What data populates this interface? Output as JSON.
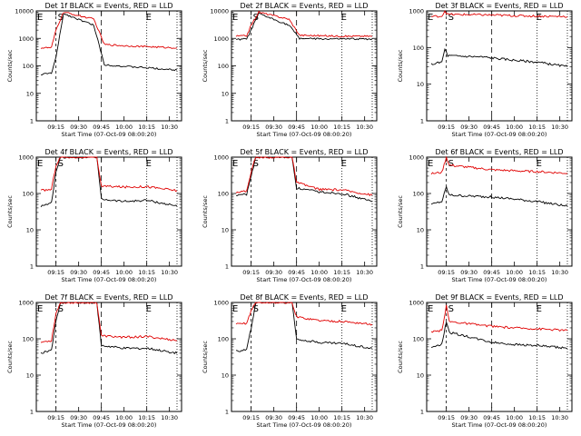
{
  "figure": {
    "y_label": "Counts/sec",
    "x_label": "Start Time (07-Oct-09 08:00:20)",
    "x_ticks": [
      "09:15",
      "09:30",
      "09:45",
      "10:00",
      "10:15",
      "10:30"
    ],
    "start_marker": "S",
    "end_marker": "E",
    "colors": {
      "black_series": "#000000",
      "red_series": "#e00000"
    }
  },
  "chart_data": [
    {
      "type": "line",
      "title": "Det 1f BLACK = Events, RED = LLD",
      "ylim": [
        1,
        10000
      ],
      "yscale": "log",
      "y_ticks": [
        "1",
        "10",
        "100",
        "1000",
        "10000"
      ],
      "flare_peak": 9000,
      "series": [
        {
          "values": [
            {
              "x": "09:05",
              "y": 48
            },
            {
              "x": "09:12",
              "y": 55
            },
            {
              "x": "09:15",
              "y": 200
            },
            {
              "x": "09:20",
              "y": 8000
            },
            {
              "x": "09:40",
              "y": 3000
            },
            {
              "x": "09:47",
              "y": 110
            },
            {
              "x": "10:00",
              "y": 95
            },
            {
              "x": "10:15",
              "y": 85
            },
            {
              "x": "10:35",
              "y": 70
            }
          ]
        },
        {
          "values": [
            {
              "x": "09:05",
              "y": 450
            },
            {
              "x": "09:12",
              "y": 460
            },
            {
              "x": "09:15",
              "y": 2000
            },
            {
              "x": "09:20",
              "y": 9000
            },
            {
              "x": "09:40",
              "y": 5000
            },
            {
              "x": "09:47",
              "y": 600
            },
            {
              "x": "10:00",
              "y": 540
            },
            {
              "x": "10:15",
              "y": 500
            },
            {
              "x": "10:35",
              "y": 450
            }
          ]
        }
      ]
    },
    {
      "type": "line",
      "title": "Det 2f BLACK = Events, RED = LLD",
      "ylim": [
        1,
        10000
      ],
      "yscale": "log",
      "y_ticks": [
        "1",
        "10",
        "100",
        "1000",
        "10000"
      ],
      "flare_peak": 9000,
      "series": [
        {
          "values": [
            {
              "x": "09:05",
              "y": 900
            },
            {
              "x": "09:12",
              "y": 950
            },
            {
              "x": "09:15",
              "y": 2000
            },
            {
              "x": "09:20",
              "y": 8000
            },
            {
              "x": "09:40",
              "y": 3000
            },
            {
              "x": "09:47",
              "y": 1000
            },
            {
              "x": "10:00",
              "y": 950
            },
            {
              "x": "10:15",
              "y": 950
            },
            {
              "x": "10:35",
              "y": 950
            }
          ]
        },
        {
          "values": [
            {
              "x": "09:05",
              "y": 1200
            },
            {
              "x": "09:12",
              "y": 1250
            },
            {
              "x": "09:15",
              "y": 3000
            },
            {
              "x": "09:20",
              "y": 9000
            },
            {
              "x": "09:40",
              "y": 5000
            },
            {
              "x": "09:47",
              "y": 1300
            },
            {
              "x": "10:00",
              "y": 1250
            },
            {
              "x": "10:15",
              "y": 1200
            },
            {
              "x": "10:35",
              "y": 1200
            }
          ]
        }
      ]
    },
    {
      "type": "line",
      "title": "Det 3f BLACK = Events, RED = LLD",
      "ylim": [
        1,
        1000
      ],
      "yscale": "log",
      "y_ticks": [
        "1",
        "10",
        "100",
        "1000"
      ],
      "flare_peak": null,
      "series": [
        {
          "values": [
            {
              "x": "09:05",
              "y": 35
            },
            {
              "x": "09:12",
              "y": 40
            },
            {
              "x": "09:14",
              "y": 90
            },
            {
              "x": "09:16",
              "y": 60
            },
            {
              "x": "09:40",
              "y": 55
            },
            {
              "x": "10:00",
              "y": 45
            },
            {
              "x": "10:15",
              "y": 40
            },
            {
              "x": "10:35",
              "y": 30
            }
          ]
        },
        {
          "values": [
            {
              "x": "09:05",
              "y": 700
            },
            {
              "x": "09:12",
              "y": 720
            },
            {
              "x": "09:14",
              "y": 1000
            },
            {
              "x": "09:16",
              "y": 800
            },
            {
              "x": "09:40",
              "y": 780
            },
            {
              "x": "10:00",
              "y": 740
            },
            {
              "x": "10:15",
              "y": 720
            },
            {
              "x": "10:35",
              "y": 700
            }
          ]
        }
      ]
    },
    {
      "type": "line",
      "title": "Det 4f BLACK = Events, RED = LLD",
      "ylim": [
        1,
        1000
      ],
      "yscale": "log",
      "y_ticks": [
        "1",
        "10",
        "100",
        "1000"
      ],
      "flare_peak": 1000,
      "series": [
        {
          "values": [
            {
              "x": "09:05",
              "y": 45
            },
            {
              "x": "09:12",
              "y": 55
            },
            {
              "x": "09:15",
              "y": 400
            },
            {
              "x": "09:18",
              "y": 1000
            },
            {
              "x": "09:42",
              "y": 1000
            },
            {
              "x": "09:45",
              "y": 70
            },
            {
              "x": "10:00",
              "y": 60
            },
            {
              "x": "10:15",
              "y": 65
            },
            {
              "x": "10:35",
              "y": 45
            }
          ]
        },
        {
          "values": [
            {
              "x": "09:05",
              "y": 120
            },
            {
              "x": "09:12",
              "y": 130
            },
            {
              "x": "09:15",
              "y": 600
            },
            {
              "x": "09:18",
              "y": 1000
            },
            {
              "x": "09:42",
              "y": 1000
            },
            {
              "x": "09:45",
              "y": 160
            },
            {
              "x": "10:00",
              "y": 150
            },
            {
              "x": "10:15",
              "y": 155
            },
            {
              "x": "10:35",
              "y": 120
            }
          ]
        }
      ]
    },
    {
      "type": "line",
      "title": "Det 5f BLACK = Events, RED = LLD",
      "ylim": [
        1,
        1000
      ],
      "yscale": "log",
      "y_ticks": [
        "1",
        "10",
        "100",
        "1000"
      ],
      "flare_peak": 1000,
      "series": [
        {
          "values": [
            {
              "x": "09:05",
              "y": 90
            },
            {
              "x": "09:12",
              "y": 95
            },
            {
              "x": "09:15",
              "y": 300
            },
            {
              "x": "09:18",
              "y": 1000
            },
            {
              "x": "09:42",
              "y": 1000
            },
            {
              "x": "09:45",
              "y": 140
            },
            {
              "x": "10:00",
              "y": 110
            },
            {
              "x": "10:15",
              "y": 100
            },
            {
              "x": "10:35",
              "y": 60
            }
          ]
        },
        {
          "values": [
            {
              "x": "09:05",
              "y": 110
            },
            {
              "x": "09:12",
              "y": 115
            },
            {
              "x": "09:15",
              "y": 400
            },
            {
              "x": "09:18",
              "y": 1000
            },
            {
              "x": "09:42",
              "y": 1000
            },
            {
              "x": "09:45",
              "y": 200
            },
            {
              "x": "10:00",
              "y": 130
            },
            {
              "x": "10:15",
              "y": 125
            },
            {
              "x": "10:35",
              "y": 90
            }
          ]
        }
      ]
    },
    {
      "type": "line",
      "title": "Det 6f BLACK = Events, RED = LLD",
      "ylim": [
        1,
        1000
      ],
      "yscale": "log",
      "y_ticks": [
        "1",
        "10",
        "100",
        "1000"
      ],
      "flare_peak": null,
      "series": [
        {
          "values": [
            {
              "x": "09:05",
              "y": 50
            },
            {
              "x": "09:12",
              "y": 60
            },
            {
              "x": "09:15",
              "y": 150
            },
            {
              "x": "09:17",
              "y": 90
            },
            {
              "x": "09:45",
              "y": 80
            },
            {
              "x": "10:00",
              "y": 70
            },
            {
              "x": "10:15",
              "y": 60
            },
            {
              "x": "10:35",
              "y": 45
            }
          ]
        },
        {
          "values": [
            {
              "x": "09:05",
              "y": 350
            },
            {
              "x": "09:12",
              "y": 380
            },
            {
              "x": "09:15",
              "y": 1000
            },
            {
              "x": "09:17",
              "y": 600
            },
            {
              "x": "09:45",
              "y": 450
            },
            {
              "x": "10:00",
              "y": 420
            },
            {
              "x": "10:15",
              "y": 400
            },
            {
              "x": "10:35",
              "y": 360
            }
          ]
        }
      ]
    },
    {
      "type": "line",
      "title": "Det 7f BLACK = Events, RED = LLD",
      "ylim": [
        1,
        1000
      ],
      "yscale": "log",
      "y_ticks": [
        "1",
        "10",
        "100",
        "1000"
      ],
      "flare_peak": 1000,
      "series": [
        {
          "values": [
            {
              "x": "09:05",
              "y": 40
            },
            {
              "x": "09:12",
              "y": 50
            },
            {
              "x": "09:15",
              "y": 300
            },
            {
              "x": "09:18",
              "y": 1000
            },
            {
              "x": "09:42",
              "y": 1000
            },
            {
              "x": "09:45",
              "y": 65
            },
            {
              "x": "10:00",
              "y": 55
            },
            {
              "x": "10:15",
              "y": 55
            },
            {
              "x": "10:35",
              "y": 40
            }
          ]
        },
        {
          "values": [
            {
              "x": "09:05",
              "y": 80
            },
            {
              "x": "09:12",
              "y": 90
            },
            {
              "x": "09:15",
              "y": 500
            },
            {
              "x": "09:18",
              "y": 1000
            },
            {
              "x": "09:42",
              "y": 1000
            },
            {
              "x": "09:45",
              "y": 120
            },
            {
              "x": "10:00",
              "y": 110
            },
            {
              "x": "10:15",
              "y": 115
            },
            {
              "x": "10:35",
              "y": 90
            }
          ]
        }
      ]
    },
    {
      "type": "line",
      "title": "Det 8f BLACK = Events, RED = LLD",
      "ylim": [
        1,
        1000
      ],
      "yscale": "log",
      "y_ticks": [
        "1",
        "10",
        "100",
        "1000"
      ],
      "flare_peak": 1000,
      "series": [
        {
          "values": [
            {
              "x": "09:05",
              "y": 45
            },
            {
              "x": "09:12",
              "y": 50
            },
            {
              "x": "09:15",
              "y": 200
            },
            {
              "x": "09:18",
              "y": 1000
            },
            {
              "x": "09:42",
              "y": 1000
            },
            {
              "x": "09:45",
              "y": 100
            },
            {
              "x": "10:00",
              "y": 80
            },
            {
              "x": "10:15",
              "y": 75
            },
            {
              "x": "10:35",
              "y": 55
            }
          ]
        },
        {
          "values": [
            {
              "x": "09:05",
              "y": 250
            },
            {
              "x": "09:12",
              "y": 270
            },
            {
              "x": "09:15",
              "y": 600
            },
            {
              "x": "09:18",
              "y": 1000
            },
            {
              "x": "09:42",
              "y": 1000
            },
            {
              "x": "09:45",
              "y": 400
            },
            {
              "x": "10:00",
              "y": 320
            },
            {
              "x": "10:15",
              "y": 300
            },
            {
              "x": "10:35",
              "y": 250
            }
          ]
        }
      ]
    },
    {
      "type": "line",
      "title": "Det 9f BLACK = Events, RED = LLD",
      "ylim": [
        1,
        1000
      ],
      "yscale": "log",
      "y_ticks": [
        "1",
        "10",
        "100",
        "1000"
      ],
      "flare_peak": null,
      "series": [
        {
          "values": [
            {
              "x": "09:05",
              "y": 60
            },
            {
              "x": "09:12",
              "y": 70
            },
            {
              "x": "09:15",
              "y": 300
            },
            {
              "x": "09:17",
              "y": 150
            },
            {
              "x": "09:45",
              "y": 80
            },
            {
              "x": "10:00",
              "y": 70
            },
            {
              "x": "10:15",
              "y": 65
            },
            {
              "x": "10:35",
              "y": 55
            }
          ]
        },
        {
          "values": [
            {
              "x": "09:05",
              "y": 150
            },
            {
              "x": "09:12",
              "y": 170
            },
            {
              "x": "09:15",
              "y": 800
            },
            {
              "x": "09:17",
              "y": 300
            },
            {
              "x": "09:45",
              "y": 220
            },
            {
              "x": "10:00",
              "y": 200
            },
            {
              "x": "10:15",
              "y": 190
            },
            {
              "x": "10:35",
              "y": 170
            }
          ]
        }
      ]
    }
  ]
}
